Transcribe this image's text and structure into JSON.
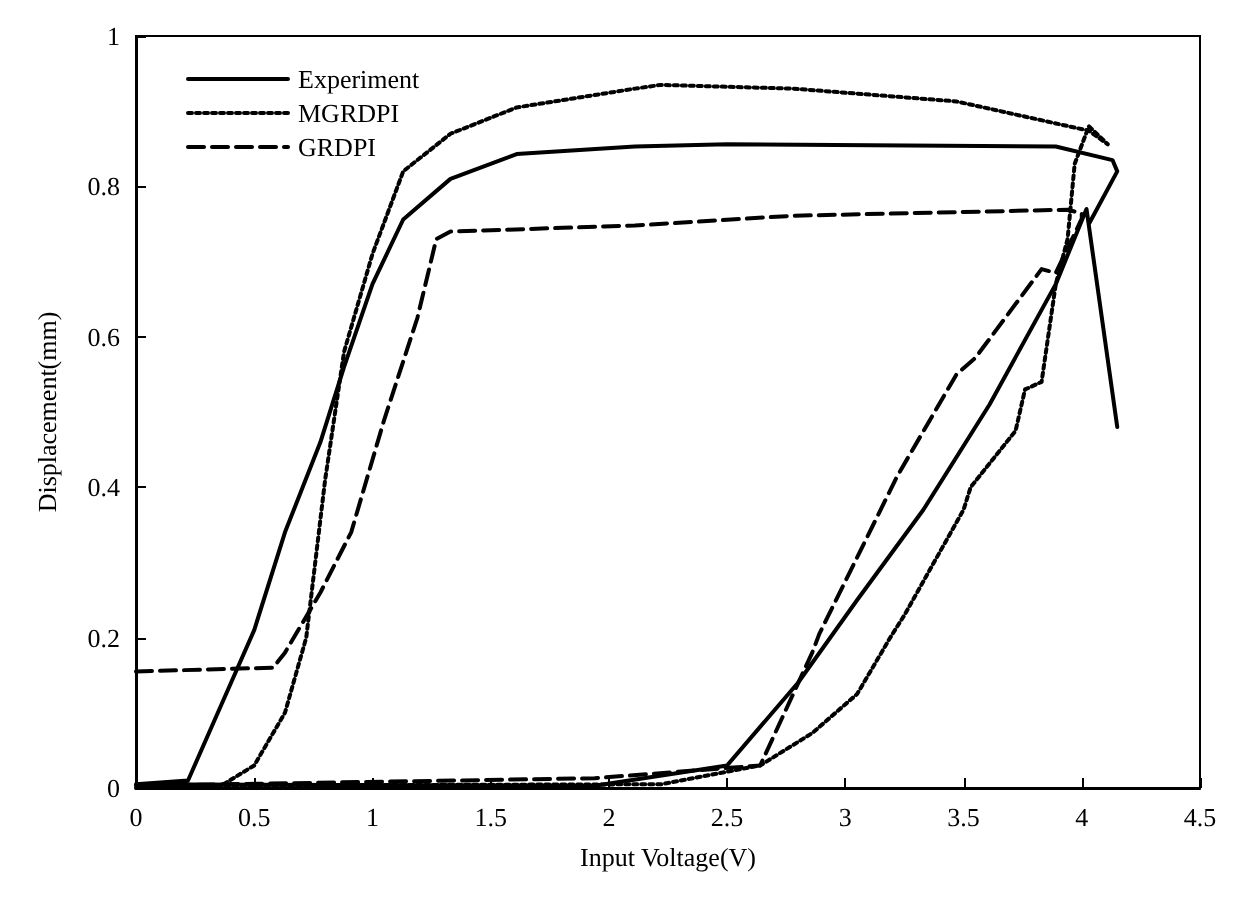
{
  "chart_data": {
    "type": "line",
    "xlabel": "Input Voltage(V)",
    "ylabel": "Displacement(mm)",
    "xlim": [
      0,
      4.5
    ],
    "ylim": [
      0,
      1
    ],
    "xticks": [
      0,
      0.5,
      1,
      1.5,
      2,
      2.5,
      3,
      3.5,
      4,
      4.5
    ],
    "yticks": [
      0,
      0.2,
      0.4,
      0.6,
      0.8,
      1
    ],
    "grid": false,
    "legend": "top left",
    "marker": "none",
    "series": [
      {
        "name": "Experiment",
        "color": "#000000",
        "line_style": "solid",
        "x": [
          4.15,
          4.02,
          3.89,
          3.61,
          3.33,
          3.05,
          2.8,
          2.5,
          1.94,
          0,
          0.22,
          0.36,
          0.5,
          0.63,
          0.78,
          0.88,
          1.0,
          1.13,
          1.33,
          1.61,
          2.11,
          2.5,
          3.89,
          4.13,
          4.15,
          4.03
        ],
        "values": [
          0.48,
          0.77,
          0.67,
          0.51,
          0.37,
          0.25,
          0.14,
          0.03,
          0.003,
          0.005,
          0.01,
          0.11,
          0.21,
          0.34,
          0.46,
          0.56,
          0.67,
          0.756,
          0.81,
          0.843,
          0.853,
          0.856,
          0.853,
          0.835,
          0.82,
          0.75
        ]
      },
      {
        "name": "MGRDPI",
        "color": "#000000",
        "line_style": "dotted",
        "x": [
          0,
          0.36,
          0.5,
          0.63,
          0.72,
          0.8,
          0.88,
          1.0,
          1.13,
          1.33,
          1.61,
          2.11,
          2.22,
          2.78,
          3.47,
          4.03,
          4.11,
          4.03,
          3.97,
          3.94,
          3.89,
          3.83,
          3.76,
          3.72,
          3.53,
          3.5,
          3.25,
          3.19,
          3.05,
          2.86,
          2.64,
          2.22,
          0
        ],
        "values": [
          0,
          0.003,
          0.03,
          0.1,
          0.2,
          0.41,
          0.58,
          0.71,
          0.82,
          0.87,
          0.905,
          0.93,
          0.935,
          0.93,
          0.913,
          0.874,
          0.856,
          0.88,
          0.83,
          0.73,
          0.67,
          0.54,
          0.53,
          0.475,
          0.4,
          0.37,
          0.23,
          0.2,
          0.125,
          0.073,
          0.03,
          0.005,
          0.003
        ]
      },
      {
        "name": "GRDPI",
        "color": "#000000",
        "line_style": "dashed",
        "x": [
          0,
          0.58,
          0.63,
          0.78,
          0.91,
          1.05,
          1.19,
          1.27,
          1.33,
          2.11,
          2.78,
          3.94,
          4.0,
          4.0,
          3.89,
          3.83,
          3.55,
          3.47,
          3.22,
          2.89,
          2.86,
          2.64,
          1.94,
          0
        ],
        "values": [
          0.155,
          0.16,
          0.18,
          0.26,
          0.34,
          0.49,
          0.625,
          0.73,
          0.74,
          0.748,
          0.761,
          0.769,
          0.764,
          0.757,
          0.685,
          0.69,
          0.572,
          0.55,
          0.415,
          0.205,
          0.18,
          0.03,
          0.013,
          0.003
        ]
      }
    ]
  }
}
